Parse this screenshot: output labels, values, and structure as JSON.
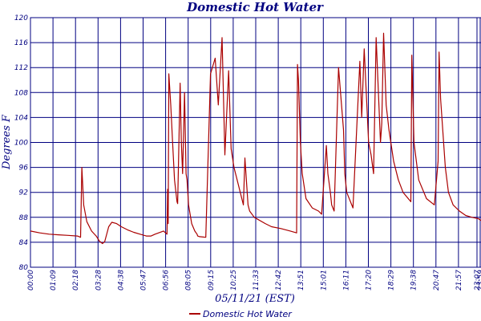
{
  "chart_data": {
    "type": "line",
    "title": "Domestic Hot Water",
    "xlabel": "05/11/21 (EST)",
    "ylabel": "Degrees F",
    "ylim": [
      80,
      120
    ],
    "yticks": [
      80,
      84,
      88,
      92,
      96,
      100,
      104,
      108,
      112,
      116,
      120
    ],
    "ytick_labels": [
      "80",
      "84",
      "88",
      "92",
      "96",
      "100",
      "104",
      "108",
      "112",
      "116",
      "120"
    ],
    "xlim": [
      0,
      1439
    ],
    "xtick_labels": [
      "00:00",
      "01:09",
      "02:18",
      "03:28",
      "04:38",
      "05:47",
      "06:56",
      "08:05",
      "09:15",
      "10:25",
      "11:33",
      "12:42",
      "13:51",
      "15:01",
      "16:11",
      "17:20",
      "18:29",
      "19:38",
      "20:47",
      "21:57",
      "23:07",
      "23:59"
    ],
    "grid": true,
    "legend": "bottom-center",
    "colors": {
      "series": "#aa0000",
      "grid": "#000080",
      "text": "#000080"
    },
    "series": [
      {
        "name": "Domestic Hot Water",
        "x": [
          0,
          30,
          60,
          90,
          120,
          150,
          160,
          164,
          170,
          180,
          195,
          210,
          220,
          230,
          237,
          250,
          260,
          275,
          290,
          310,
          330,
          350,
          370,
          385,
          398,
          425,
          436,
          438,
          440,
          442,
          448,
          454,
          460,
          468,
          470,
          478,
          482,
          486,
          492,
          497,
          500,
          505,
          515,
          525,
          532,
          534,
          540,
          560,
          575,
          590,
          600,
          612,
          621,
          633,
          641,
          650,
          670,
          680,
          685,
          695,
          700,
          715,
          750,
          770,
          800,
          830,
          850,
          853,
          856,
          862,
          868,
          880,
          900,
          920,
          930,
          945,
          950,
          958,
          962,
          970,
          984,
          1000,
          1004,
          1010,
          1030,
          1052,
          1058,
          1066,
          1080,
          1088,
          1096,
          1104,
          1118,
          1122,
          1128,
          1136,
          1145,
          1160,
          1175,
          1190,
          1215,
          1218,
          1225,
          1240,
          1265,
          1290,
          1302,
          1305,
          1310,
          1325,
          1335,
          1350,
          1370,
          1390,
          1410,
          1430,
          1439
        ],
        "values": [
          85.8,
          85.5,
          85.3,
          85.2,
          85.1,
          85.0,
          84.8,
          96.0,
          90.0,
          87.3,
          85.8,
          85.0,
          84.2,
          83.8,
          84.1,
          86.5,
          87.2,
          87.0,
          86.5,
          86.0,
          85.6,
          85.3,
          85.0,
          85.0,
          85.3,
          85.8,
          85.3,
          92.5,
          87.0,
          111.0,
          106.0,
          100.0,
          94.0,
          90.5,
          90.2,
          109.5,
          100.0,
          95.0,
          108.0,
          95.0,
          94.0,
          90.0,
          87.0,
          85.8,
          85.3,
          85.0,
          84.9,
          84.8,
          111.0,
          113.5,
          106.0,
          116.8,
          98.0,
          111.5,
          99.0,
          96.0,
          92.0,
          90.0,
          97.5,
          90.0,
          89.0,
          88.0,
          87.0,
          86.5,
          86.2,
          85.8,
          85.5,
          112.5,
          110.0,
          100.0,
          95.0,
          91.0,
          89.5,
          89.0,
          88.5,
          99.5,
          95.0,
          92.0,
          90.0,
          89.0,
          112.0,
          102.0,
          95.0,
          92.0,
          89.5,
          113.0,
          104.0,
          115.0,
          100.0,
          98.0,
          95.0,
          116.8,
          100.0,
          103.0,
          117.5,
          106.0,
          102.0,
          97.0,
          94.0,
          92.0,
          90.5,
          114.0,
          100.0,
          94.0,
          91.0,
          90.0,
          97.0,
          114.5,
          107.0,
          96.0,
          92.0,
          90.0,
          89.0,
          88.3,
          88.0,
          87.8,
          87.5
        ]
      }
    ]
  }
}
